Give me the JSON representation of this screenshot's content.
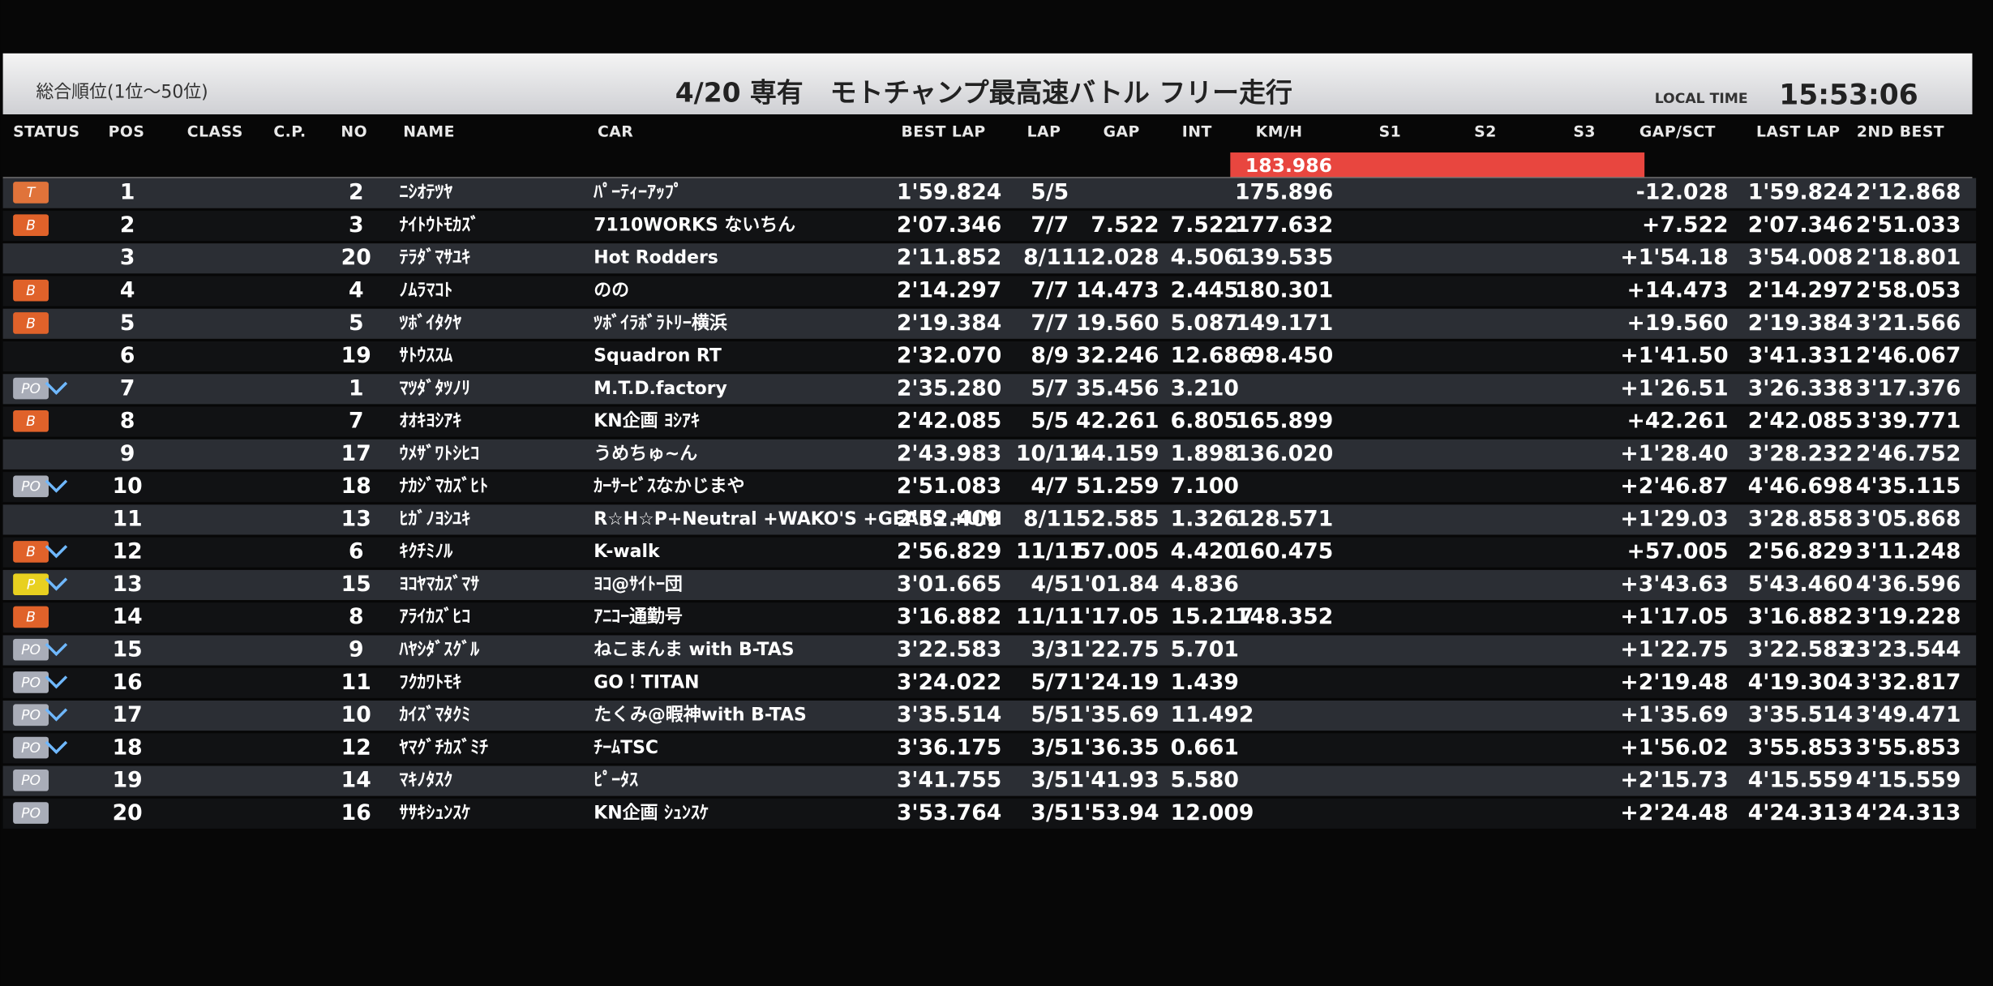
{
  "header": {
    "range": "総合順位(1位～50位)",
    "title": "4/20 専有　モトチャンプ最高速バトル フリー走行",
    "local_time_label": "LOCAL TIME",
    "local_time": "15:53:06"
  },
  "columns": [
    "STATUS",
    "POS",
    "CLASS",
    "C.P.",
    "NO",
    "NAME",
    "CAR",
    "BEST LAP",
    "LAP",
    "GAP",
    "INT",
    "KM/H",
    "S1",
    "S2",
    "S3",
    "GAP/SCT",
    "LAST LAP",
    "2ND BEST"
  ],
  "top_speed": "183.986",
  "rows": [
    {
      "status": "T",
      "status_color": "#e0733a",
      "pos": "1",
      "no": "2",
      "name": "ﾆｼｵﾃﾂﾔ",
      "car": "ﾊﾟｰﾃｨｰｱｯﾌﾟ",
      "best_lap": "1'59.824",
      "lap": "5/5",
      "gap": null,
      "int": null,
      "kmh": "175.896",
      "gap_sct": "-12.028",
      "gap_sct_color": "#ff5a5a",
      "last_lap": "1'59.824",
      "last_lap_color": "#ff8a8a",
      "second_best": "2'12.868"
    },
    {
      "status": "B",
      "status_color": "#e0622a",
      "pos": "2",
      "no": "3",
      "name": "ﾅｲﾄｳﾄﾓｶｽﾞ",
      "car": "7110WORKS ないちん",
      "best_lap": "2'07.346",
      "lap": "7/7",
      "gap": "7.522",
      "int": "7.522",
      "kmh": "177.632",
      "gap_sct": "+7.522",
      "gap_sct_color": "#7dff7d",
      "last_lap": "2'07.346",
      "last_lap_color": "#f2e04a",
      "second_best": "2'51.033"
    },
    {
      "status": null,
      "status_color": null,
      "pos": "3",
      "no": "20",
      "name": "ﾃﾗﾀﾞﾏｻﾕｷ",
      "car": "Hot Rodders",
      "best_lap": "2'11.852",
      "lap": "8/11",
      "gap": "12.028",
      "int": "4.506",
      "kmh": "139.535",
      "gap_sct": "+1'54.18",
      "gap_sct_color": "#7dff7d",
      "last_lap": "3'54.008",
      "last_lap_color": "#ffffff",
      "second_best": "2'18.801"
    },
    {
      "status": "B",
      "status_color": "#e0622a",
      "pos": "4",
      "no": "4",
      "name": "ﾉﾑﾗﾏｺﾄ",
      "car": "のの",
      "best_lap": "2'14.297",
      "lap": "7/7",
      "gap": "14.473",
      "int": "2.445",
      "kmh": "180.301",
      "gap_sct": "+14.473",
      "gap_sct_color": "#7dff7d",
      "last_lap": "2'14.297",
      "last_lap_color": "#f2e04a",
      "second_best": "2'58.053"
    },
    {
      "status": "B",
      "status_color": "#e0622a",
      "pos": "5",
      "no": "5",
      "name": "ﾂﾎﾞｲﾀｸﾔ",
      "car": "ﾂﾎﾞｲﾗﾎﾞﾗﾄﾘｰ横浜",
      "best_lap": "2'19.384",
      "lap": "7/7",
      "gap": "19.560",
      "int": "5.087",
      "kmh": "149.171",
      "gap_sct": "+19.560",
      "gap_sct_color": "#7dff7d",
      "last_lap": "2'19.384",
      "last_lap_color": "#f2e04a",
      "second_best": "3'21.566"
    },
    {
      "status": null,
      "status_color": null,
      "pos": "6",
      "no": "19",
      "name": "ｻﾄｳｽｽﾑ",
      "car": "Squadron RT",
      "best_lap": "2'32.070",
      "lap": "8/9",
      "gap": "32.246",
      "int": "12.686",
      "kmh": "98.450",
      "gap_sct": "+1'41.50",
      "gap_sct_color": "#7dff7d",
      "last_lap": "3'41.331",
      "last_lap_color": "#ffffff",
      "second_best": "2'46.067"
    },
    {
      "status": "PO",
      "status_color": "#a9adb8",
      "arrow": true,
      "pos": "7",
      "no": "1",
      "name": "ﾏﾂﾀﾞﾀﾂﾉﾘ",
      "car": "M.T.D.factory",
      "best_lap": "2'35.280",
      "lap": "5/7",
      "gap": "35.456",
      "int": "3.210",
      "kmh": null,
      "gap_sct": "+1'26.51",
      "gap_sct_color": "#7dff7d",
      "last_lap": "3'26.338",
      "last_lap_color": "#ffffff",
      "second_best": "3'17.376"
    },
    {
      "status": "B",
      "status_color": "#e0622a",
      "pos": "8",
      "no": "7",
      "name": "ｵｵｷﾖｼｱｷ",
      "car": "KN企画 ﾖｼｱｷ",
      "best_lap": "2'42.085",
      "lap": "5/5",
      "gap": "42.261",
      "int": "6.805",
      "kmh": "165.899",
      "gap_sct": "+42.261",
      "gap_sct_color": "#7dff7d",
      "last_lap": "2'42.085",
      "last_lap_color": "#f2e04a",
      "second_best": "3'39.771"
    },
    {
      "status": null,
      "status_color": null,
      "pos": "9",
      "no": "17",
      "name": "ｳﾒｻﾞﾜﾄｼﾋｺ",
      "car": "うめちゅ~ん",
      "best_lap": "2'43.983",
      "lap": "10/11",
      "gap": "44.159",
      "int": "1.898",
      "kmh": "136.020",
      "gap_sct": "+1'28.40",
      "gap_sct_color": "#7dff7d",
      "last_lap": "3'28.232",
      "last_lap_color": "#ffffff",
      "second_best": "2'46.752"
    },
    {
      "status": "PO",
      "status_color": "#a9adb8",
      "arrow": true,
      "pos": "10",
      "no": "18",
      "name": "ﾅｶｼﾞﾏｶｽﾞﾋﾄ",
      "car": "ｶｰｻｰﾋﾞｽなかじまや",
      "best_lap": "2'51.083",
      "lap": "4/7",
      "gap": "51.259",
      "int": "7.100",
      "kmh": null,
      "gap_sct": "+2'46.87",
      "gap_sct_color": "#7dff7d",
      "last_lap": "4'46.698",
      "last_lap_color": "#ffffff",
      "second_best": "4'35.115"
    },
    {
      "status": null,
      "status_color": null,
      "pos": "11",
      "no": "13",
      "name": "ﾋｶﾞﾉﾖｼﾕｷ",
      "car": "R☆H☆P+Neutral +WAKO'S +GEARS +UNI",
      "best_lap": "2'52.409",
      "lap": "8/11",
      "gap": "52.585",
      "int": "1.326",
      "kmh": "128.571",
      "gap_sct": "+1'29.03",
      "gap_sct_color": "#7dff7d",
      "last_lap": "3'28.858",
      "last_lap_color": "#ffffff",
      "second_best": "3'05.868"
    },
    {
      "status": "B",
      "status_color": "#e0622a",
      "arrow": true,
      "pos": "12",
      "no": "6",
      "name": "ｷｸﾁﾐﾉﾙ",
      "car": "K-walk",
      "best_lap": "2'56.829",
      "lap": "11/11",
      "gap": "57.005",
      "int": "4.420",
      "kmh": "160.475",
      "gap_sct": "+57.005",
      "gap_sct_color": "#7dff7d",
      "last_lap": "2'56.829",
      "last_lap_color": "#f2e04a",
      "second_best": "3'11.248"
    },
    {
      "status": "P",
      "status_color": "#e8d020",
      "arrow": true,
      "pos": "13",
      "no": "15",
      "name": "ﾖｺﾔﾏｶｽﾞﾏｻ",
      "car": "ﾖｺ@ｻｲﾄｰ団",
      "best_lap": "3'01.665",
      "lap": "4/5",
      "gap": "1'01.84",
      "int": "4.836",
      "kmh": null,
      "gap_sct": "+3'43.63",
      "gap_sct_color": "#7dff7d",
      "last_lap": "5'43.460",
      "last_lap_color": "#ffffff",
      "second_best": "4'36.596"
    },
    {
      "status": "B",
      "status_color": "#e0622a",
      "pos": "14",
      "no": "8",
      "name": "ｱﾗｲｶｽﾞﾋｺ",
      "car": "ｱﾆｺｰ通勤号",
      "best_lap": "3'16.882",
      "lap": "11/11",
      "gap": "1'17.05",
      "int": "15.217",
      "kmh": "148.352",
      "gap_sct": "+1'17.05",
      "gap_sct_color": "#7dff7d",
      "last_lap": "3'16.882",
      "last_lap_color": "#f2e04a",
      "second_best": "3'19.228"
    },
    {
      "status": "PO",
      "status_color": "#a9adb8",
      "arrow": true,
      "pos": "15",
      "no": "9",
      "name": "ﾊﾔｼﾀﾞｽｸﾞﾙ",
      "car": "ねこまんま with B-TAS",
      "best_lap": "3'22.583",
      "lap": "3/3",
      "gap": "1'22.75",
      "int": "5.701",
      "kmh": null,
      "gap_sct": "+1'22.75",
      "gap_sct_color": "#7dff7d",
      "last_lap": "3'22.583",
      "last_lap_color": "#f2e04a",
      "second_best": "23'23.544"
    },
    {
      "status": "PO",
      "status_color": "#a9adb8",
      "arrow": true,
      "pos": "16",
      "no": "11",
      "name": "ﾌｸｶﾜﾄﾓｷ",
      "car": "GO！TITAN",
      "best_lap": "3'24.022",
      "lap": "5/7",
      "gap": "1'24.19",
      "int": "1.439",
      "kmh": null,
      "gap_sct": "+2'19.48",
      "gap_sct_color": "#7dff7d",
      "last_lap": "4'19.304",
      "last_lap_color": "#ffffff",
      "second_best": "3'32.817"
    },
    {
      "status": "PO",
      "status_color": "#a9adb8",
      "arrow": true,
      "pos": "17",
      "no": "10",
      "name": "ｶｲｽﾞﾏﾀｸﾐ",
      "car": "たくみ@暇神with B-TAS",
      "best_lap": "3'35.514",
      "lap": "5/5",
      "gap": "1'35.69",
      "int": "11.492",
      "kmh": null,
      "gap_sct": "+1'35.69",
      "gap_sct_color": "#7dff7d",
      "last_lap": "3'35.514",
      "last_lap_color": "#f2e04a",
      "second_best": "3'49.471"
    },
    {
      "status": "PO",
      "status_color": "#a9adb8",
      "arrow": true,
      "pos": "18",
      "no": "12",
      "name": "ﾔﾏｸﾞﾁｶｽﾞﾐﾁ",
      "car": "ﾁｰﾑTSC",
      "best_lap": "3'36.175",
      "lap": "3/5",
      "gap": "1'36.35",
      "int": "0.661",
      "kmh": null,
      "gap_sct": "+1'56.02",
      "gap_sct_color": "#7dff7d",
      "last_lap": "3'55.853",
      "last_lap_color": "#ffffff",
      "second_best": "3'55.853"
    },
    {
      "status": "PO",
      "status_color": "#a9adb8",
      "pos": "19",
      "no": "14",
      "name": "ﾏｷﾉﾀｽｸ",
      "car": "ﾋﾟｰﾀｽ",
      "best_lap": "3'41.755",
      "lap": "3/5",
      "gap": "1'41.93",
      "int": "5.580",
      "kmh": null,
      "gap_sct": "+2'15.73",
      "gap_sct_color": "#7dff7d",
      "last_lap": "4'15.559",
      "last_lap_color": "#ffffff",
      "second_best": "4'15.559"
    },
    {
      "status": "PO",
      "status_color": "#a9adb8",
      "pos": "20",
      "no": "16",
      "name": "ｻｻｷｼｭﾝｽｹ",
      "car": "KN企画 ｼｭﾝｽｹ",
      "best_lap": "3'53.764",
      "lap": "3/5",
      "gap": "1'53.94",
      "int": "12.009",
      "kmh": null,
      "gap_sct": "+2'24.48",
      "gap_sct_color": "#7dff7d",
      "last_lap": "4'24.313",
      "last_lap_color": "#ffffff",
      "second_best": "4'24.313"
    }
  ]
}
